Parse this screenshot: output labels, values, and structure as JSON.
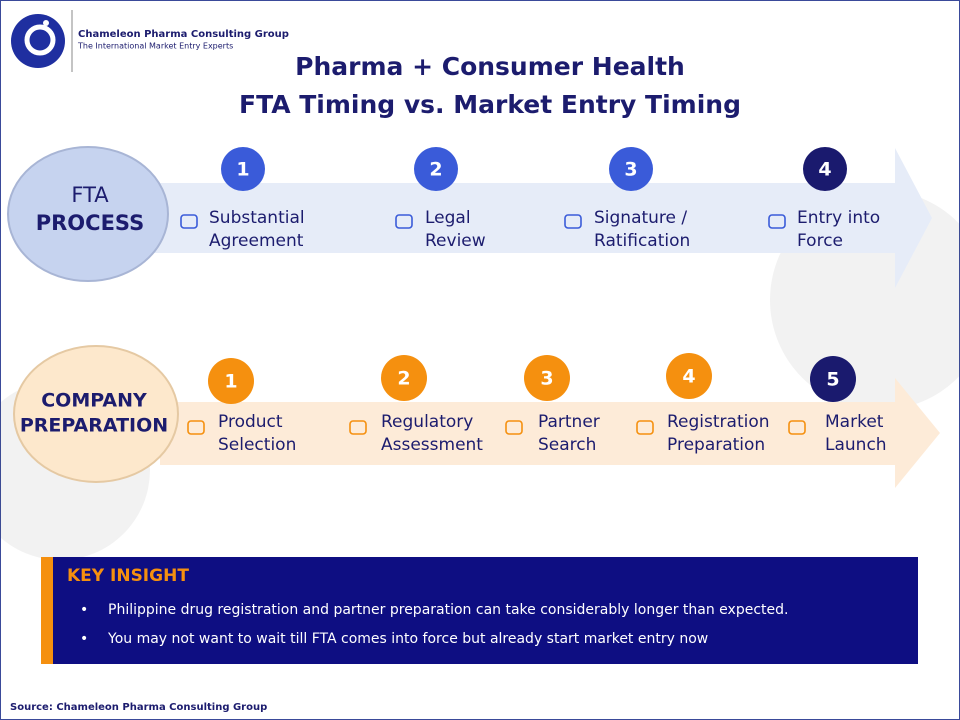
{
  "logo": {
    "name": "Chameleon Pharma Consulting Group",
    "tagline": "The International Market Entry Experts"
  },
  "title": {
    "line1": "Pharma + Consumer Health",
    "line2": "FTA Timing vs. Market Entry Timing"
  },
  "fta": {
    "label": [
      "FTA",
      "PROCESS"
    ],
    "steps": [
      {
        "number": "1",
        "label": [
          "Substantial",
          "Agreement"
        ]
      },
      {
        "number": "2",
        "label": [
          "Legal",
          "Review"
        ]
      },
      {
        "number": "3",
        "label": [
          "Signature /",
          "Ratification"
        ]
      },
      {
        "number": "4",
        "label": [
          "Entry into",
          "Force"
        ]
      }
    ]
  },
  "company": {
    "label": [
      "COMPANY",
      "PREPARATION"
    ],
    "steps": [
      {
        "number": "1",
        "label": [
          "Product",
          "Selection"
        ]
      },
      {
        "number": "2",
        "label": [
          "Regulatory",
          "Assessment"
        ]
      },
      {
        "number": "3",
        "label": [
          "Partner",
          "Search"
        ]
      },
      {
        "number": "4",
        "label": [
          "Registration",
          "Preparation"
        ]
      },
      {
        "number": "5",
        "label": [
          "Market",
          "Launch"
        ]
      }
    ]
  },
  "insight": {
    "title": "KEY INSIGHT",
    "bullets": [
      "Philippine drug registration and partner preparation can take considerably longer than expected.",
      "You may not want to wait till FTA comes into force but already start market entry now"
    ]
  },
  "source": "Source: Chameleon Pharma Consulting Group"
}
